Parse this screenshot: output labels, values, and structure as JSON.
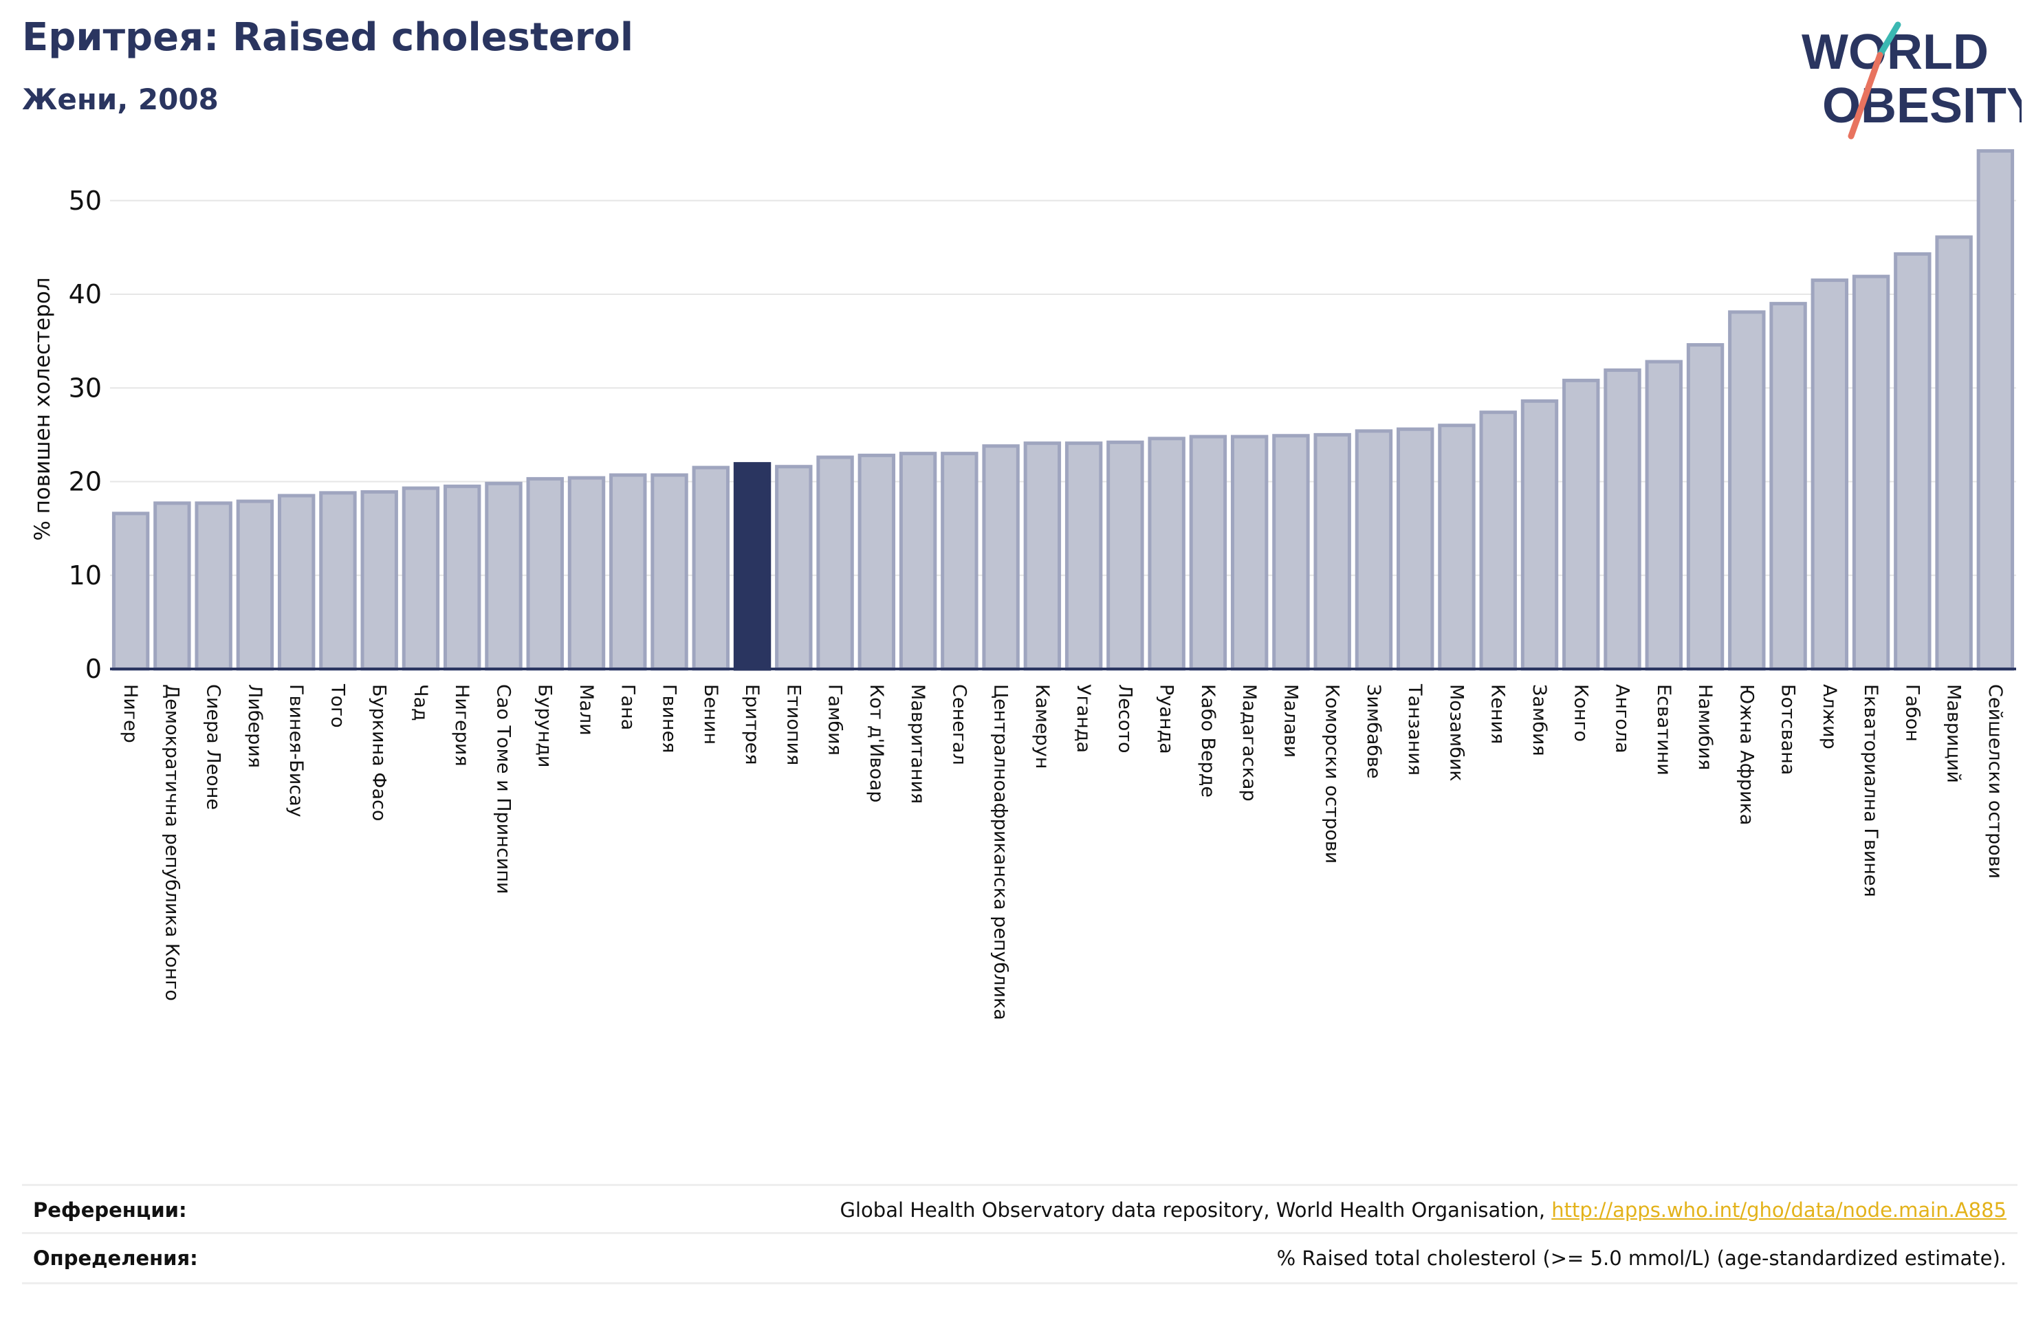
{
  "header": {
    "title": "Еритрея: Raised cholesterol",
    "subtitle": "Жени, 2008"
  },
  "logo": {
    "line1": "WORLD",
    "line2": "OBESITY"
  },
  "colors": {
    "bar": "#bfc3d2",
    "bar_edge": "#9fa5bf",
    "highlight": "#2a3560",
    "axis": "#2a3560",
    "grid": "#e6e6e6",
    "title": "#2a3560",
    "link": "#e3b21a"
  },
  "chart_data": {
    "type": "bar",
    "title": "Еритрея: Raised cholesterol",
    "subtitle": "Жени, 2008",
    "ylabel": "% повишен холестерол",
    "xlabel": "",
    "ylim": [
      0,
      56
    ],
    "yticks": [
      0,
      10,
      20,
      30,
      40,
      50
    ],
    "grid": true,
    "highlight": "Еритрея",
    "categories": [
      "Нигер",
      "Демократична република Конго",
      "Сиера Леоне",
      "Либерия",
      "Гвинея-Бисау",
      "Того",
      "Буркина Фасо",
      "Чад",
      "Нигерия",
      "Сао Томе и Принсипи",
      "Бурунди",
      "Мали",
      "Гана",
      "Гвинея",
      "Бенин",
      "Еритрея",
      "Етиопия",
      "Гамбия",
      "Кот д'Ивоар",
      "Мавритания",
      "Сенегал",
      "Централноафриканска република",
      "Камерун",
      "Уганда",
      "Лесото",
      "Руанда",
      "Кабо Верде",
      "Мадагаскар",
      "Малави",
      "Коморски острови",
      "Зимбабве",
      "Танзания",
      "Мозамбик",
      "Кения",
      "Замбия",
      "Конго",
      "Ангола",
      "Есватини",
      "Намибия",
      "Южна Африка",
      "Ботсвана",
      "Алжир",
      "Екваториална Гвинея",
      "Габон",
      "Мавриций",
      "Сейшелски острови"
    ],
    "values": [
      16.6,
      17.7,
      17.7,
      17.9,
      18.5,
      18.8,
      18.9,
      19.3,
      19.5,
      19.8,
      20.3,
      20.4,
      20.7,
      20.7,
      21.5,
      21.9,
      21.6,
      22.6,
      22.8,
      23.0,
      23.0,
      23.8,
      24.1,
      24.1,
      24.2,
      24.6,
      24.8,
      24.8,
      24.9,
      25.0,
      25.4,
      25.6,
      26.0,
      27.4,
      28.6,
      30.8,
      31.9,
      32.8,
      34.6,
      38.1,
      39.0,
      41.5,
      41.9,
      44.3,
      46.1,
      55.3
    ]
  },
  "footer": {
    "references_label": "Референции:",
    "references_text": "Global Health Observatory data repository, World Health Organisation, ",
    "references_link": "http://apps.who.int/gho/data/node.main.A885",
    "definitions_label": "Определения:",
    "definitions_text": "% Raised total cholesterol (>= 5.0 mmol/L) (age-standardized estimate)."
  }
}
